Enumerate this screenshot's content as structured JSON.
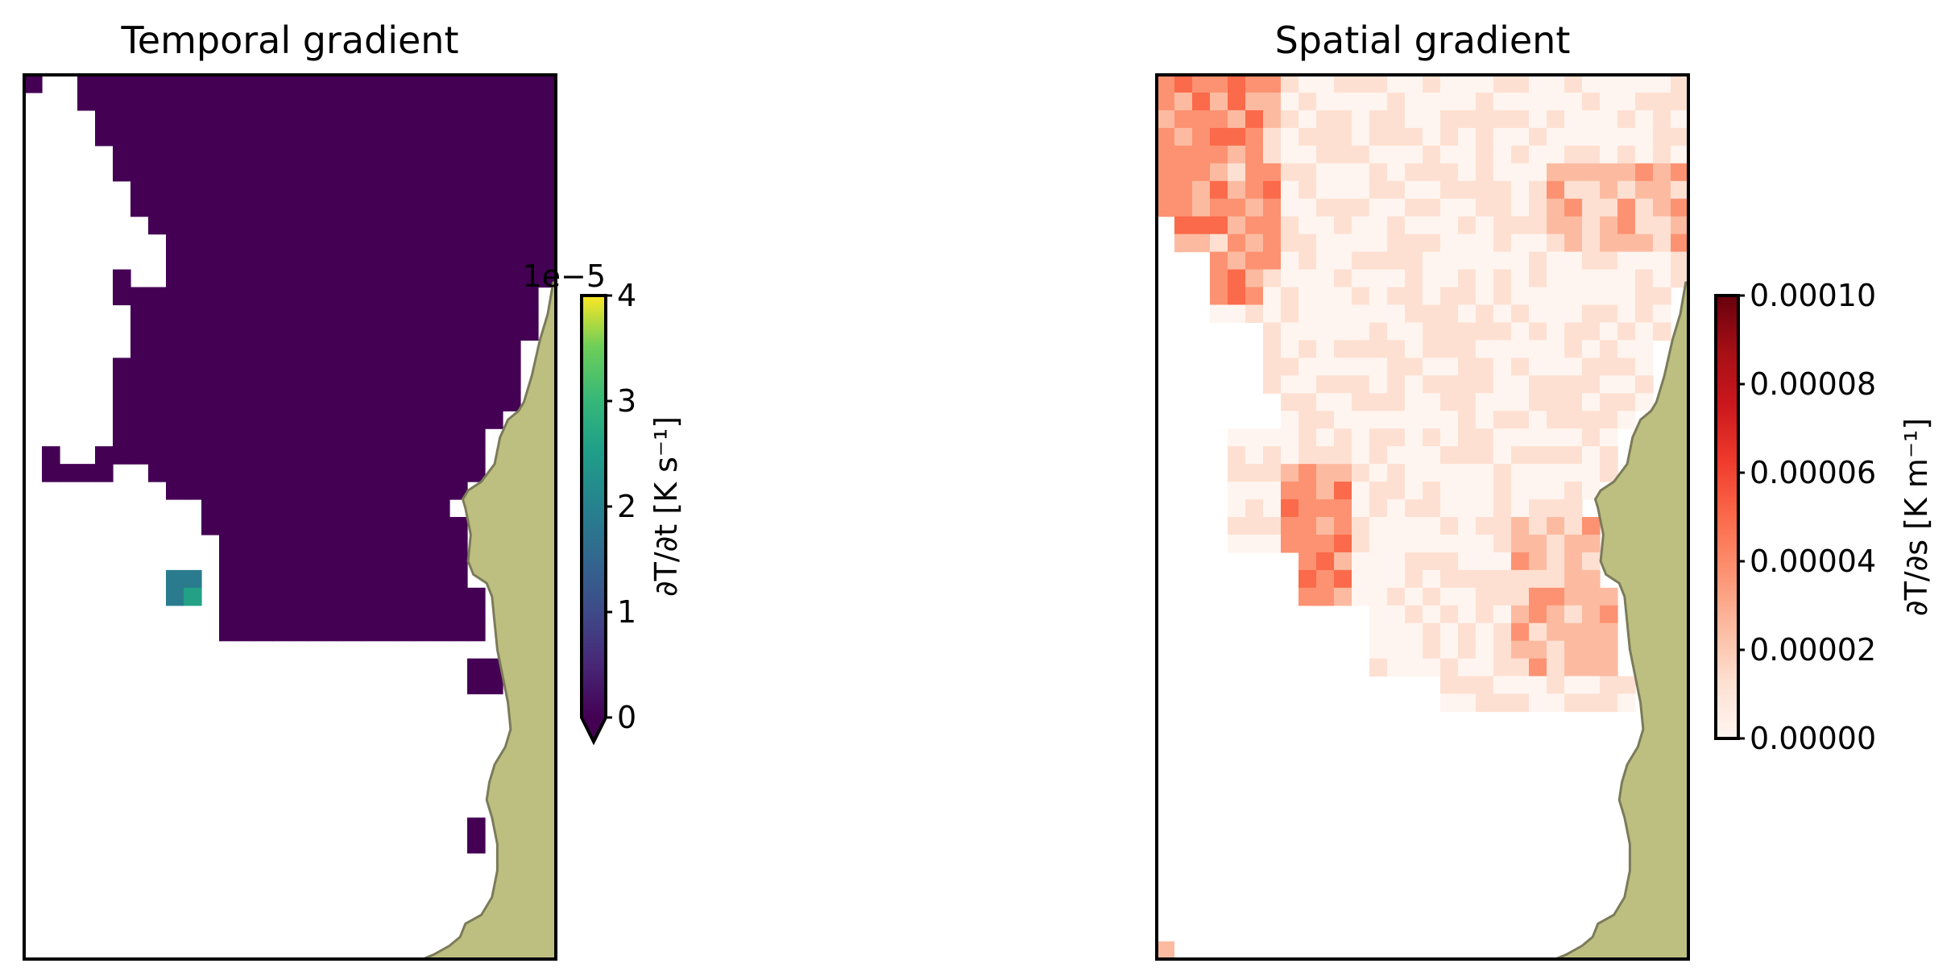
{
  "figure": {
    "panels": [
      {
        "title": "Temporal gradient",
        "colormap": "viridis",
        "colorbar": {
          "label": "∂T/∂t [K s⁻¹]",
          "offset_text": "1e−5",
          "ticks": [
            "0",
            "1",
            "2",
            "3",
            "4"
          ],
          "range": [
            0,
            4
          ],
          "extend": "min"
        }
      },
      {
        "title": "Spatial gradient",
        "colormap": "Reds",
        "colorbar": {
          "label": "∂T/∂s [K m⁻¹]",
          "ticks": [
            "0.00000",
            "0.00002",
            "0.00004",
            "0.00006",
            "0.00008",
            "0.00010"
          ],
          "range": [
            0,
            0.0001
          ]
        }
      }
    ],
    "land_color": "#bdbf80",
    "coast_color": "#7b7b5a"
  },
  "chart_data": [
    {
      "type": "heatmap",
      "title": "Temporal gradient",
      "grid_cols": 30,
      "grid_rows": 50,
      "colorbar_label": "∂T/∂t [K s⁻¹]",
      "colorbar_range": [
        0,
        4
      ],
      "colorbar_offset": "1e−5",
      "value_scale": 1e-05,
      "dominant_value": 0,
      "notes_hotspot_values": [
        2.2,
        2.6
      ]
    },
    {
      "type": "heatmap",
      "title": "Spatial gradient",
      "grid_cols": 30,
      "grid_rows": 50,
      "colorbar_label": "∂T/∂s [K m⁻¹]",
      "colorbar_range": [
        0,
        0.0001
      ],
      "typical_value_range": [
        5e-06,
        5e-05
      ]
    }
  ]
}
